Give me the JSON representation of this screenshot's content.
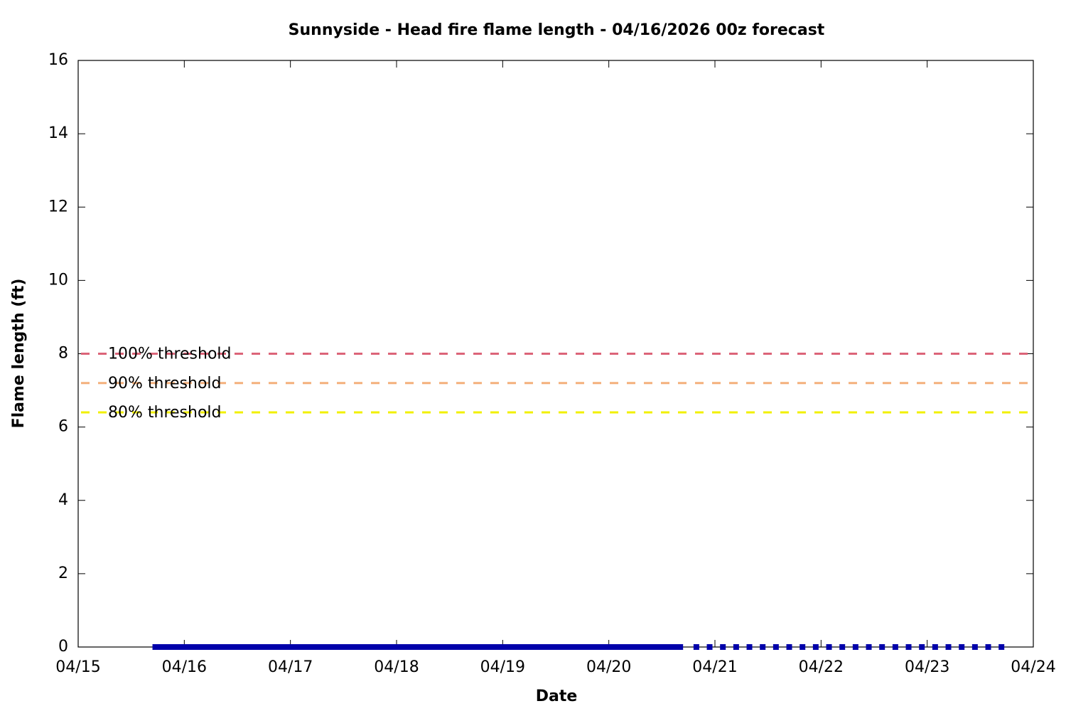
{
  "chart_data": {
    "type": "line",
    "title": "Sunnyside - Head fire flame length - 04/16/2026 00z forecast",
    "x_label": "Date",
    "y_label": "Flame length (ft)",
    "xlim": [
      0,
      9
    ],
    "xticks": [
      {
        "value": 0,
        "label": "04/15"
      },
      {
        "value": 1,
        "label": "04/16"
      },
      {
        "value": 2,
        "label": "04/17"
      },
      {
        "value": 3,
        "label": "04/18"
      },
      {
        "value": 4,
        "label": "04/19"
      },
      {
        "value": 5,
        "label": "04/20"
      },
      {
        "value": 6,
        "label": "04/21"
      },
      {
        "value": 7,
        "label": "04/22"
      },
      {
        "value": 8,
        "label": "04/23"
      },
      {
        "value": 9,
        "label": "04/24"
      }
    ],
    "ylim": [
      0,
      16
    ],
    "yticks": [
      0,
      2,
      4,
      6,
      8,
      10,
      12,
      14,
      16
    ],
    "grid": false,
    "thresholds": [
      {
        "label": "100% threshold",
        "value": 8,
        "color": "#dc6478"
      },
      {
        "label": "90% threshold",
        "value": 7.2,
        "color": "#f4b07c"
      },
      {
        "label": "80% threshold",
        "value": 6.4,
        "color": "#f2f000"
      }
    ],
    "series": [
      {
        "style": "line",
        "color": "#0000aa",
        "x": [
          0.7,
          0.825,
          0.95,
          1.075,
          1.2,
          1.325,
          1.45,
          1.575,
          1.7,
          1.825,
          1.95,
          2.075,
          2.2,
          2.325,
          2.45,
          2.575,
          2.7,
          2.825,
          2.95,
          3.075,
          3.2,
          3.325,
          3.45,
          3.575,
          3.7,
          3.825,
          3.95,
          4.075,
          4.2,
          4.325,
          4.45,
          4.575,
          4.7,
          4.825,
          4.95,
          5.075,
          5.2,
          5.325,
          5.45,
          5.575,
          5.7
        ],
        "values": [
          0,
          0,
          0,
          0,
          0,
          0,
          0,
          0,
          0,
          0,
          0,
          0,
          0,
          0,
          0,
          0,
          0,
          0,
          0,
          0,
          0,
          0,
          0,
          0,
          0,
          0,
          0,
          0,
          0,
          0,
          0,
          0,
          0,
          0,
          0,
          0,
          0,
          0,
          0,
          0,
          0
        ]
      },
      {
        "style": "points",
        "color": "#0000aa",
        "x": [
          5.825,
          5.95,
          6.075,
          6.2,
          6.325,
          6.45,
          6.575,
          6.7,
          6.825,
          6.95,
          7.075,
          7.2,
          7.325,
          7.45,
          7.575,
          7.7,
          7.825,
          7.95,
          8.075,
          8.2,
          8.325,
          8.45,
          8.575,
          8.7
        ],
        "values": [
          0,
          0,
          0,
          0,
          0,
          0,
          0,
          0,
          0,
          0,
          0,
          0,
          0,
          0,
          0,
          0,
          0,
          0,
          0,
          0,
          0,
          0,
          0,
          0
        ]
      }
    ]
  }
}
